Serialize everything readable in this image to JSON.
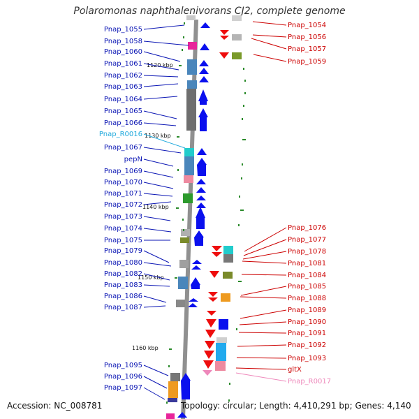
{
  "title": "Polaromonas naphthalenivorans CJ2, complete genome",
  "footer": {
    "accession": "Accession: NC_008781",
    "topology": "Topology: circular; Length: 4,410,291 bp; Genes: 4,140"
  },
  "colors": {
    "forward_label": "#0b16b4",
    "reverse_label": "#cc0000",
    "rna_forward_label": "#22aadd",
    "rna_reverse_label": "#ee88bb",
    "forward_gene": "#0a10ee",
    "reverse_gene": "#ee0d0d",
    "backbone": "#909090",
    "tick": "#2a8a2a"
  },
  "kbp_marks": [
    "1120 kbp",
    "1130 kbp",
    "1140 kbp",
    "1150 kbp",
    "1160 kbp"
  ],
  "left_labels": [
    {
      "text": "Pnap_1055",
      "type": "gene"
    },
    {
      "text": "Pnap_1058",
      "type": "gene"
    },
    {
      "text": "Pnap_1060",
      "type": "gene"
    },
    {
      "text": "Pnap_1061",
      "type": "gene"
    },
    {
      "text": "Pnap_1062",
      "type": "gene"
    },
    {
      "text": "Pnap_1063",
      "type": "gene"
    },
    {
      "text": "Pnap_1064",
      "type": "gene"
    },
    {
      "text": "Pnap_1065",
      "type": "gene"
    },
    {
      "text": "Pnap_1066",
      "type": "gene"
    },
    {
      "text": "Pnap_R0016",
      "type": "rna"
    },
    {
      "text": "Pnap_1067",
      "type": "gene"
    },
    {
      "text": "pepN",
      "type": "gene"
    },
    {
      "text": "Pnap_1069",
      "type": "gene"
    },
    {
      "text": "Pnap_1070",
      "type": "gene"
    },
    {
      "text": "Pnap_1071",
      "type": "gene"
    },
    {
      "text": "Pnap_1072",
      "type": "gene"
    },
    {
      "text": "Pnap_1073",
      "type": "gene"
    },
    {
      "text": "Pnap_1074",
      "type": "gene"
    },
    {
      "text": "Pnap_1075",
      "type": "gene"
    },
    {
      "text": "Pnap_1079",
      "type": "gene"
    },
    {
      "text": "Pnap_1080",
      "type": "gene"
    },
    {
      "text": "Pnap_1082",
      "type": "gene"
    },
    {
      "text": "Pnap_1083",
      "type": "gene"
    },
    {
      "text": "Pnap_1086",
      "type": "gene"
    },
    {
      "text": "Pnap_1087",
      "type": "gene"
    },
    {
      "text": "Pnap_1095",
      "type": "gene"
    },
    {
      "text": "Pnap_1096",
      "type": "gene"
    },
    {
      "text": "Pnap_1097",
      "type": "gene"
    }
  ],
  "right_labels": [
    {
      "text": "Pnap_1054",
      "type": "gene"
    },
    {
      "text": "Pnap_1056",
      "type": "gene"
    },
    {
      "text": "Pnap_1057",
      "type": "gene"
    },
    {
      "text": "Pnap_1059",
      "type": "gene"
    },
    {
      "text": "Pnap_1076",
      "type": "gene"
    },
    {
      "text": "Pnap_1077",
      "type": "gene"
    },
    {
      "text": "Pnap_1078",
      "type": "gene"
    },
    {
      "text": "Pnap_1081",
      "type": "gene"
    },
    {
      "text": "Pnap_1084",
      "type": "gene"
    },
    {
      "text": "Pnap_1085",
      "type": "gene"
    },
    {
      "text": "Pnap_1088",
      "type": "gene"
    },
    {
      "text": "Pnap_1089",
      "type": "gene"
    },
    {
      "text": "Pnap_1090",
      "type": "gene"
    },
    {
      "text": "Pnap_1091",
      "type": "gene"
    },
    {
      "text": "Pnap_1092",
      "type": "gene"
    },
    {
      "text": "Pnap_1093",
      "type": "gene"
    },
    {
      "text": "gltX",
      "type": "gene"
    },
    {
      "text": "Pnap_R0017",
      "type": "rna"
    }
  ]
}
